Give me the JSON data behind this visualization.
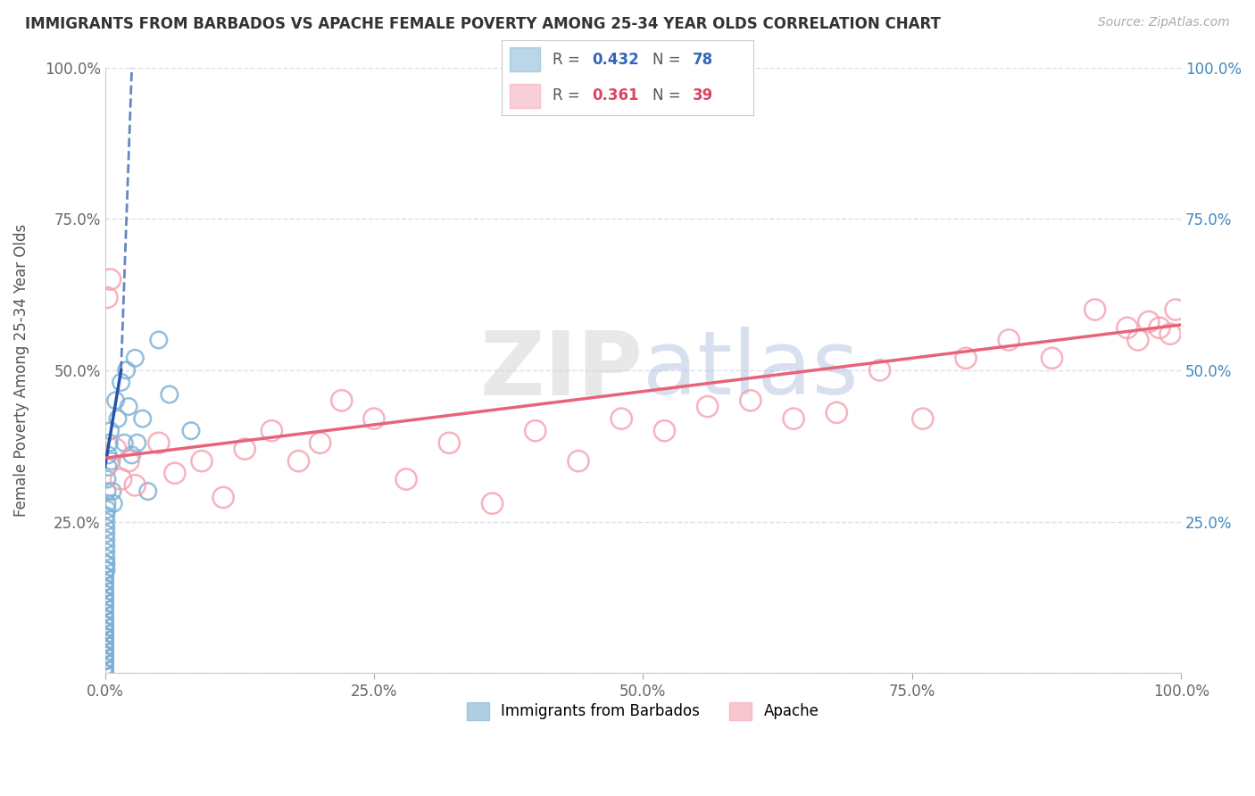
{
  "title": "IMMIGRANTS FROM BARBADOS VS APACHE FEMALE POVERTY AMONG 25-34 YEAR OLDS CORRELATION CHART",
  "source": "Source: ZipAtlas.com",
  "ylabel": "Female Poverty Among 25-34 Year Olds",
  "legend_labels": [
    "Immigrants from Barbados",
    "Apache"
  ],
  "blue_R": 0.432,
  "blue_N": 78,
  "pink_R": 0.361,
  "pink_N": 39,
  "blue_color": "#7BAFD4",
  "pink_color": "#F4A0B0",
  "blue_line_color": "#2255AA",
  "pink_line_color": "#E8637A",
  "watermark_color": "#D8E4F0",
  "blue_scatter_x": [
    0.0,
    0.0,
    0.0,
    0.0,
    0.0,
    0.0,
    0.0,
    0.0,
    0.0,
    0.0,
    0.0,
    0.0,
    0.0,
    0.0,
    0.0,
    0.0,
    0.0,
    0.0,
    0.0,
    0.0,
    0.0,
    0.0,
    0.0,
    0.0,
    0.0,
    0.0,
    0.0,
    0.0,
    0.0,
    0.0,
    0.0,
    0.0,
    0.0,
    0.0,
    0.0,
    0.0,
    0.0,
    0.0,
    0.0,
    0.0,
    0.0,
    0.001,
    0.001,
    0.001,
    0.001,
    0.001,
    0.001,
    0.001,
    0.001,
    0.001,
    0.001,
    0.001,
    0.001,
    0.002,
    0.002,
    0.002,
    0.002,
    0.003,
    0.003,
    0.004,
    0.005,
    0.006,
    0.007,
    0.008,
    0.01,
    0.012,
    0.015,
    0.018,
    0.02,
    0.022,
    0.025,
    0.028,
    0.03,
    0.035,
    0.04,
    0.05,
    0.06,
    0.08
  ],
  "blue_scatter_y": [
    0.0,
    0.0,
    0.01,
    0.01,
    0.02,
    0.02,
    0.02,
    0.03,
    0.03,
    0.03,
    0.04,
    0.04,
    0.04,
    0.05,
    0.05,
    0.05,
    0.06,
    0.06,
    0.06,
    0.07,
    0.07,
    0.07,
    0.08,
    0.08,
    0.08,
    0.09,
    0.09,
    0.1,
    0.1,
    0.11,
    0.11,
    0.12,
    0.12,
    0.13,
    0.13,
    0.14,
    0.14,
    0.15,
    0.15,
    0.16,
    0.16,
    0.17,
    0.17,
    0.18,
    0.18,
    0.19,
    0.2,
    0.21,
    0.22,
    0.23,
    0.24,
    0.25,
    0.26,
    0.27,
    0.28,
    0.3,
    0.32,
    0.34,
    0.36,
    0.38,
    0.4,
    0.35,
    0.3,
    0.28,
    0.45,
    0.42,
    0.48,
    0.38,
    0.5,
    0.44,
    0.36,
    0.52,
    0.38,
    0.42,
    0.3,
    0.55,
    0.46,
    0.4
  ],
  "pink_scatter_x": [
    0.002,
    0.005,
    0.01,
    0.015,
    0.022,
    0.028,
    0.05,
    0.065,
    0.09,
    0.11,
    0.13,
    0.155,
    0.18,
    0.2,
    0.22,
    0.25,
    0.28,
    0.32,
    0.36,
    0.4,
    0.44,
    0.48,
    0.52,
    0.56,
    0.6,
    0.64,
    0.68,
    0.72,
    0.76,
    0.8,
    0.84,
    0.88,
    0.92,
    0.95,
    0.96,
    0.97,
    0.98,
    0.99,
    0.995
  ],
  "pink_scatter_y": [
    0.62,
    0.65,
    0.37,
    0.32,
    0.35,
    0.31,
    0.38,
    0.33,
    0.35,
    0.29,
    0.37,
    0.4,
    0.35,
    0.38,
    0.45,
    0.42,
    0.32,
    0.38,
    0.28,
    0.4,
    0.35,
    0.42,
    0.4,
    0.44,
    0.45,
    0.42,
    0.43,
    0.5,
    0.42,
    0.52,
    0.55,
    0.52,
    0.6,
    0.57,
    0.55,
    0.58,
    0.57,
    0.56,
    0.6
  ],
  "pink_trend_x0": 0.0,
  "pink_trend_y0": 0.355,
  "pink_trend_x1": 1.0,
  "pink_trend_y1": 0.575,
  "blue_trend_solid_x0": 0.0,
  "blue_trend_solid_y0": 0.34,
  "blue_trend_solid_x1": 0.015,
  "blue_trend_solid_y1": 0.5,
  "blue_trend_dash_x0": 0.015,
  "blue_trend_dash_y0": 0.5,
  "blue_trend_dash_x1": 0.025,
  "blue_trend_dash_y1": 1.0,
  "xlim": [
    0.0,
    1.0
  ],
  "ylim": [
    0.0,
    1.0
  ],
  "xticks": [
    0.0,
    0.25,
    0.5,
    0.75,
    1.0
  ],
  "yticks": [
    0.0,
    0.25,
    0.5,
    0.75,
    1.0
  ],
  "xtick_labels_left": [
    "0.0%",
    "25.0%",
    "50.0%",
    "75.0%",
    "100.0%"
  ],
  "ytick_labels_left": [
    "",
    "25.0%",
    "50.0%",
    "75.0%",
    "100.0%"
  ],
  "ytick_labels_right": [
    "",
    "25.0%",
    "50.0%",
    "75.0%",
    "100.0%"
  ],
  "background_color": "#FFFFFF",
  "grid_color": "#DDDDEE"
}
